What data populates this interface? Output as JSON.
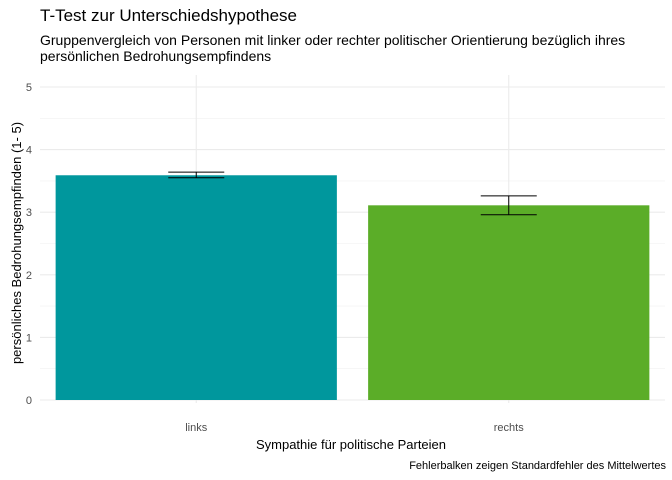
{
  "chart_data": {
    "type": "bar",
    "title": "T-Test zur Unterschiedshypothese",
    "subtitle": "Gruppenvergleich von Personen mit linker oder rechter politischer Orientierung bezüglich ihres persönlichen Bedrohungsempfindens",
    "xlabel": "Sympathie für politische Parteien",
    "ylabel": "persönliches Bedrohungsempfinden (1- 5)",
    "caption": "Fehlerbalken zeigen Standardfehler des Mittelwertes",
    "categories": [
      "links",
      "rechts"
    ],
    "values": [
      3.59,
      3.11
    ],
    "error_low": [
      3.55,
      2.96
    ],
    "error_high": [
      3.64,
      3.26
    ],
    "colors": [
      "#00979D",
      "#5BAD28"
    ],
    "ylim": [
      0,
      5
    ],
    "yticks": [
      "0",
      "1",
      "2",
      "3",
      "4",
      "5"
    ],
    "grid": true,
    "legend": "none"
  }
}
